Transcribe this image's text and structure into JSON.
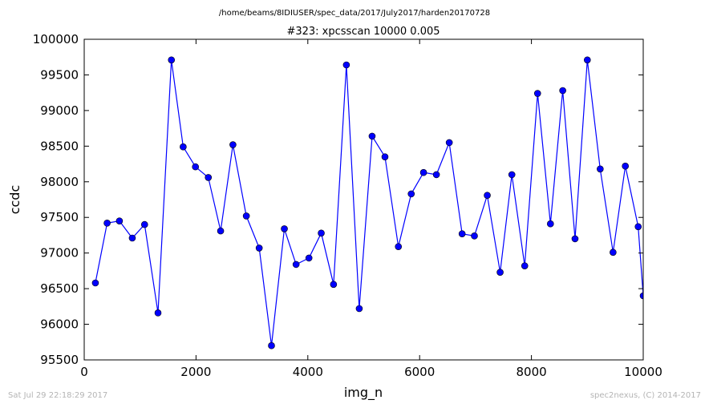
{
  "footer": {
    "left": "Sat Jul 29 22:18:29 2017",
    "right": "spec2nexus, (C) 2014-2017"
  },
  "chart_data": {
    "type": "line",
    "suptitle": "/home/beams/8IDIUSER/spec_data/2017/July2017/harden20170728",
    "title": "#323: xpcsscan 10000 0.005",
    "xlabel": "img_n",
    "ylabel": "ccdc",
    "xlim": [
      0,
      10000
    ],
    "ylim": [
      95500,
      100000
    ],
    "xticks": [
      0,
      2000,
      4000,
      6000,
      8000,
      10000
    ],
    "yticks": [
      95500,
      96000,
      96500,
      97000,
      97500,
      98000,
      98500,
      99000,
      99500,
      100000
    ],
    "grid": false,
    "line_color": "#0000ff",
    "marker_color": "#0000ff",
    "x": [
      200,
      410,
      630,
      860,
      1080,
      1320,
      1560,
      1770,
      1990,
      2220,
      2440,
      2660,
      2900,
      3130,
      3350,
      3580,
      3790,
      4020,
      4240,
      4460,
      4690,
      4920,
      5150,
      5380,
      5620,
      5850,
      6070,
      6300,
      6530,
      6760,
      6980,
      7210,
      7440,
      7650,
      7880,
      8110,
      8340,
      8560,
      8780,
      9000,
      9230,
      9460,
      9680,
      9910,
      10000
    ],
    "y": [
      96580,
      97420,
      97450,
      97210,
      97400,
      96160,
      99710,
      98490,
      98210,
      98060,
      97310,
      98520,
      97520,
      97070,
      95700,
      97340,
      96840,
      96930,
      97280,
      96560,
      99640,
      96220,
      98640,
      98350,
      97090,
      97830,
      98130,
      98100,
      98550,
      97270,
      97240,
      97810,
      96730,
      98100,
      96820,
      99240,
      97410,
      99280,
      97200,
      99710,
      98180,
      97010,
      98220,
      97370,
      96400
    ]
  }
}
